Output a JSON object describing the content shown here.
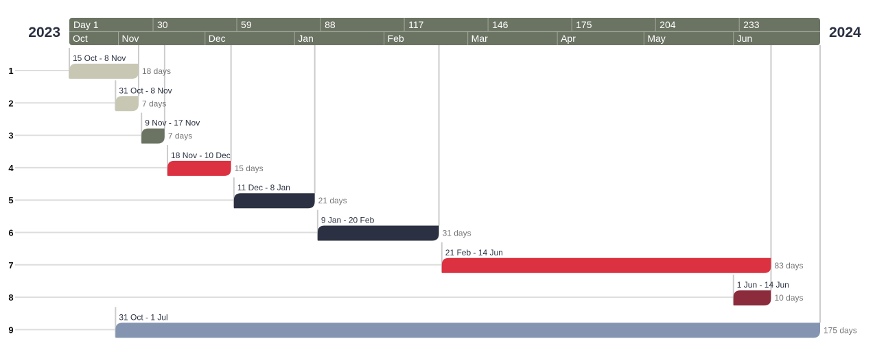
{
  "chart_data": {
    "type": "gantt",
    "year_start_label": "2023",
    "year_end_label": "2024",
    "start_date": "2023-10-15",
    "end_date": "2024-07-01",
    "day_ticks": [
      {
        "day": 1,
        "label": "Day 1"
      },
      {
        "day": 30,
        "label": "30"
      },
      {
        "day": 59,
        "label": "59"
      },
      {
        "day": 88,
        "label": "88"
      },
      {
        "day": 117,
        "label": "117"
      },
      {
        "day": 146,
        "label": "146"
      },
      {
        "day": 175,
        "label": "175"
      },
      {
        "day": 204,
        "label": "204"
      },
      {
        "day": 233,
        "label": "233"
      }
    ],
    "months": [
      {
        "label": "Oct",
        "start": "2023-10-15"
      },
      {
        "label": "Nov",
        "start": "2023-11-01"
      },
      {
        "label": "Dec",
        "start": "2023-12-01"
      },
      {
        "label": "Jan",
        "start": "2024-01-01"
      },
      {
        "label": "Feb",
        "start": "2024-02-01"
      },
      {
        "label": "Mar",
        "start": "2024-03-01"
      },
      {
        "label": "Apr",
        "start": "2024-04-01"
      },
      {
        "label": "May",
        "start": "2024-05-01"
      },
      {
        "label": "Jun",
        "start": "2024-06-01"
      }
    ],
    "tasks": [
      {
        "row": "1",
        "start": "2023-10-15",
        "end": "2023-11-08",
        "range_label": "15 Oct - 8 Nov",
        "duration_label": "18 days",
        "color": "#c8c7b3"
      },
      {
        "row": "2",
        "start": "2023-10-31",
        "end": "2023-11-08",
        "range_label": "31 Oct - 8 Nov",
        "duration_label": "7 days",
        "color": "#c8c7b3"
      },
      {
        "row": "3",
        "start": "2023-11-09",
        "end": "2023-11-17",
        "range_label": "9 Nov - 17 Nov",
        "duration_label": "7 days",
        "color": "#6b7363"
      },
      {
        "row": "4",
        "start": "2023-11-18",
        "end": "2023-12-10",
        "range_label": "18 Nov - 10 Dec",
        "duration_label": "15 days",
        "color": "#db3140"
      },
      {
        "row": "5",
        "start": "2023-12-11",
        "end": "2024-01-08",
        "range_label": "11 Dec - 8 Jan",
        "duration_label": "21 days",
        "color": "#2b3142"
      },
      {
        "row": "6",
        "start": "2024-01-09",
        "end": "2024-02-20",
        "range_label": "9 Jan - 20 Feb",
        "duration_label": "31 days",
        "color": "#2b3142"
      },
      {
        "row": "7",
        "start": "2024-02-21",
        "end": "2024-06-14",
        "range_label": "21 Feb - 14 Jun",
        "duration_label": "83 days",
        "color": "#db3140"
      },
      {
        "row": "8",
        "start": "2024-06-01",
        "end": "2024-06-14",
        "range_label": "1 Jun - 14 Jun",
        "duration_label": "10 days",
        "color": "#8b2b3c"
      },
      {
        "row": "9",
        "start": "2023-10-31",
        "end": "2024-07-01",
        "range_label": "31 Oct - 1 Jul",
        "duration_label": "175 days",
        "color": "#8595b1"
      }
    ],
    "colors": {
      "header": "#6b7363",
      "grid": "#dddddd",
      "dependency": "#cccccc"
    }
  }
}
